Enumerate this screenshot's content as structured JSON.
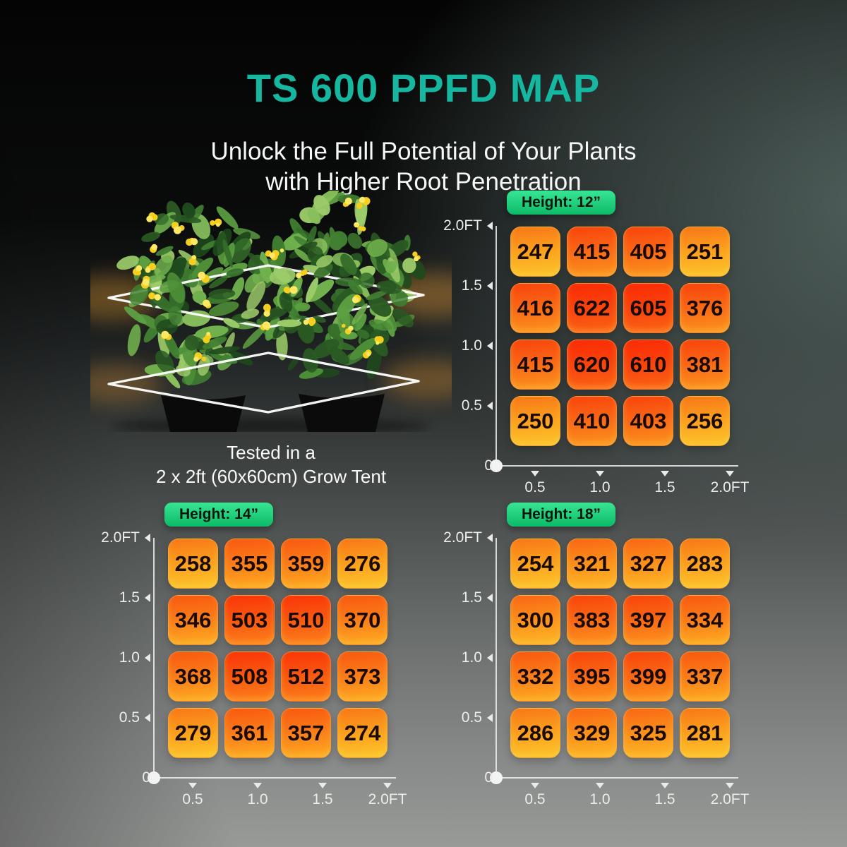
{
  "page": {
    "title": "TS 600 PPFD MAP",
    "subtitle_line1": "Unlock the Full Potential of Your Plants",
    "subtitle_line2": "with Higher Root Penetration"
  },
  "figure": {
    "caption_line1": "Tested in a",
    "caption_line2": "2 x 2ft (60x60cm) Grow Tent"
  },
  "axes": {
    "y_labels": [
      "2.0FT",
      "1.5",
      "1.0",
      "0.5",
      "0"
    ],
    "x_labels": [
      "0.5",
      "1.0",
      "1.5",
      "2.0FT"
    ]
  },
  "colors": {
    "title_teal": "#16b7a1",
    "badge_green_top": "#38e594",
    "badge_green_bottom": "#0cba67",
    "cell_value_text": "#190a02",
    "axis_light": "#ededec",
    "heat_low": "#fdc62b",
    "heat_mid": "#fc7f19",
    "heat_high": "#fc2a04"
  },
  "chart_data": [
    {
      "type": "heatmap",
      "title": "Height: 12”",
      "x_ft": [
        0.5,
        1.0,
        1.5,
        2.0
      ],
      "y_ft": [
        2.0,
        1.5,
        1.0,
        0.5
      ],
      "values": [
        [
          247,
          415,
          405,
          251
        ],
        [
          416,
          622,
          605,
          376
        ],
        [
          415,
          620,
          610,
          381
        ],
        [
          250,
          410,
          403,
          256
        ]
      ]
    },
    {
      "type": "heatmap",
      "title": "Height: 14”",
      "x_ft": [
        0.5,
        1.0,
        1.5,
        2.0
      ],
      "y_ft": [
        2.0,
        1.5,
        1.0,
        0.5
      ],
      "values": [
        [
          258,
          355,
          359,
          276
        ],
        [
          346,
          503,
          510,
          370
        ],
        [
          368,
          508,
          512,
          373
        ],
        [
          279,
          361,
          357,
          274
        ]
      ]
    },
    {
      "type": "heatmap",
      "title": "Height: 18”",
      "x_ft": [
        0.5,
        1.0,
        1.5,
        2.0
      ],
      "y_ft": [
        2.0,
        1.5,
        1.0,
        0.5
      ],
      "values": [
        [
          254,
          321,
          327,
          283
        ],
        [
          300,
          383,
          397,
          334
        ],
        [
          332,
          395,
          399,
          337
        ],
        [
          286,
          329,
          325,
          281
        ]
      ]
    }
  ]
}
